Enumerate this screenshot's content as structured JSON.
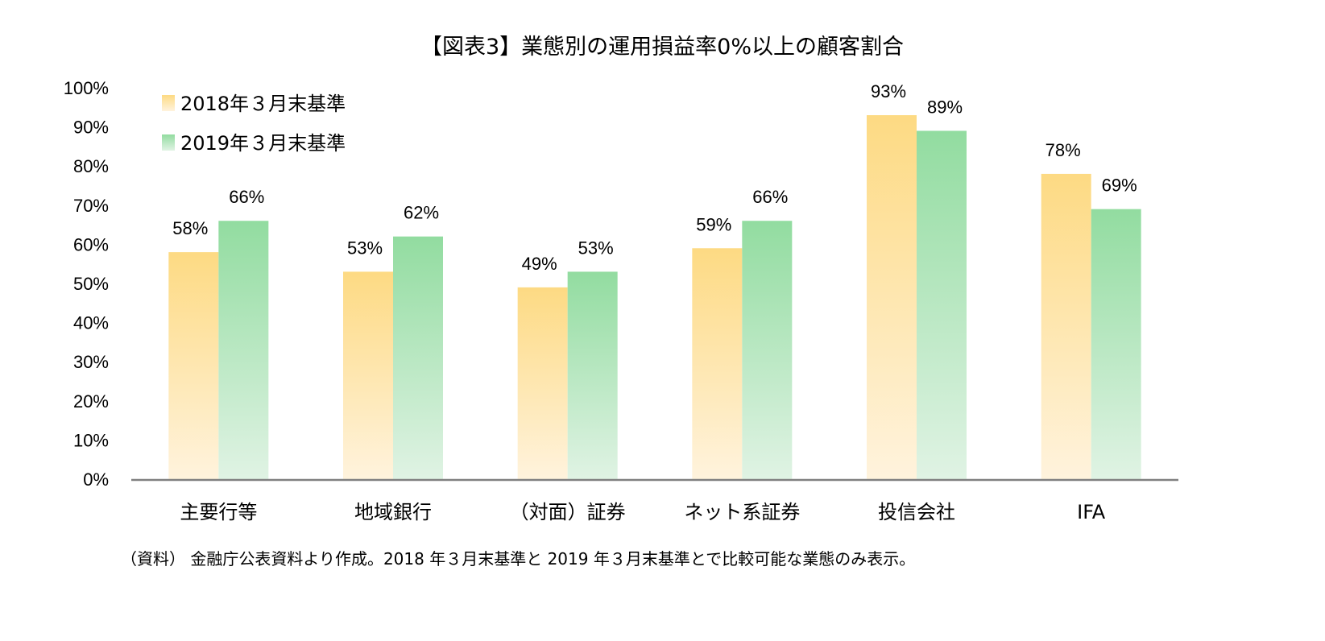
{
  "chart_data": {
    "type": "bar",
    "title": "【図表3】業態別の運用損益率0%以上の顧客割合",
    "xlabel": "",
    "ylabel": "",
    "ylim": [
      0,
      100
    ],
    "y_tick_step": 10,
    "y_tick_format": "percent",
    "y_ticks": [
      "0%",
      "10%",
      "20%",
      "30%",
      "40%",
      "50%",
      "60%",
      "70%",
      "80%",
      "90%",
      "100%"
    ],
    "grid": false,
    "legend_position": "top-left",
    "categories": [
      "主要行等",
      "地域銀行",
      "（対面）証券",
      "ネット系証券",
      "投信会社",
      "IFA"
    ],
    "series": [
      {
        "name": "2018年３月末基準",
        "values": [
          58,
          53,
          49,
          59,
          93,
          78
        ],
        "color_top": "#FDDA83",
        "color_bottom": "#FFF3DD"
      },
      {
        "name": "2019年３月末基準",
        "values": [
          66,
          62,
          53,
          66,
          89,
          69
        ],
        "color_top": "#92DCA0",
        "color_bottom": "#E0F3E4"
      }
    ],
    "data_labels": true,
    "data_label_suffix": "%",
    "note": "（資料） 金融庁公表資料より作成。2018 年３月末基準と 2019 年３月末基準とで比較可能な業態のみ表示。",
    "axis_color": "#808080"
  }
}
